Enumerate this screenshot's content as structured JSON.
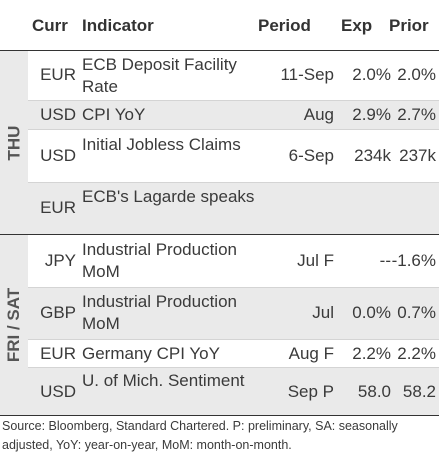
{
  "header": {
    "curr": "Curr",
    "indicator": "Indicator",
    "period": "Period",
    "exp": "Exp",
    "prior": "Prior"
  },
  "groups": [
    {
      "label": "THU"
    },
    {
      "label": "FRI / SAT"
    }
  ],
  "rows": [
    {
      "curr": "EUR",
      "indicator": "ECB Deposit Facility Rate",
      "period": "11-Sep",
      "exp": "2.0%",
      "prior": "2.0%"
    },
    {
      "curr": "USD",
      "indicator": "CPI YoY",
      "period": "Aug",
      "exp": "2.9%",
      "prior": "2.7%"
    },
    {
      "curr": "USD",
      "indicator": "Initial Jobless Claims",
      "period": "6-Sep",
      "exp": "234k",
      "prior": "237k"
    },
    {
      "curr": "EUR",
      "indicator": "ECB's Lagarde speaks",
      "period": "",
      "exp": "",
      "prior": ""
    },
    {
      "curr": "JPY",
      "indicator": "Industrial Production MoM",
      "period": "Jul F",
      "exp": "--",
      "prior": "-1.6%"
    },
    {
      "curr": "GBP",
      "indicator": "Industrial Production MoM",
      "period": "Jul",
      "exp": "0.0%",
      "prior": "0.7%"
    },
    {
      "curr": "EUR",
      "indicator": "Germany CPI YoY",
      "period": "Aug F",
      "exp": "2.2%",
      "prior": "2.2%"
    },
    {
      "curr": "USD",
      "indicator": "U. of Mich. Sentiment",
      "period": "Sep P",
      "exp": "58.0",
      "prior": "58.2"
    }
  ],
  "footnote": "Source: Bloomberg, Standard Chartered. P: preliminary, SA: seasonally adjusted, YoY: year-on-year, MoM: month-on-month."
}
